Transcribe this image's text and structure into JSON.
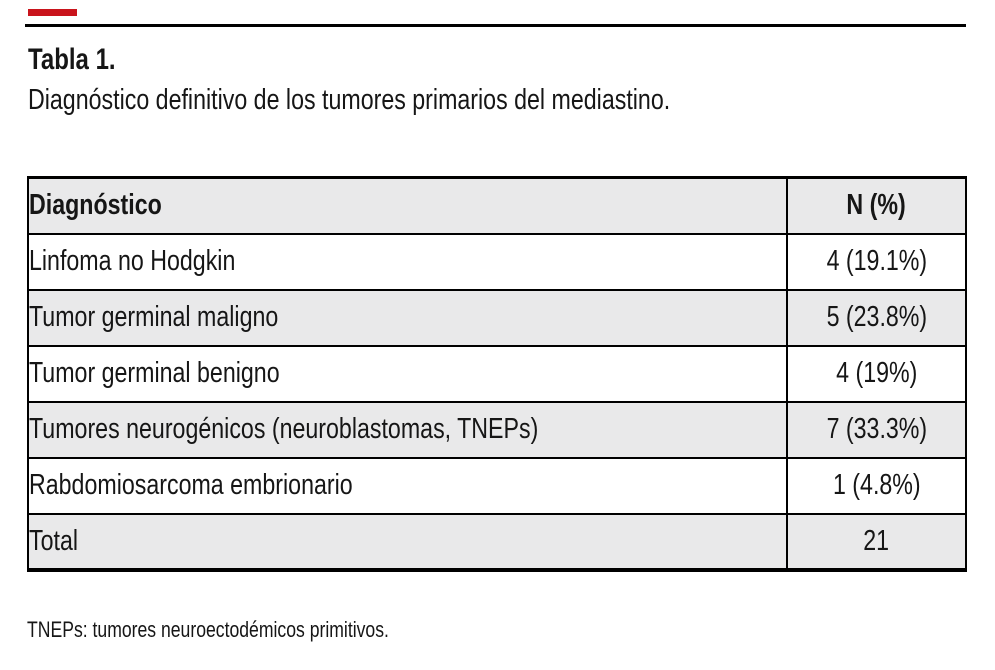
{
  "header": {
    "label": "Tabla 1.",
    "caption": "Diagnóstico definitivo de los tumores primarios del mediastino."
  },
  "table": {
    "columns": [
      "Diagnóstico",
      "N (%)"
    ],
    "rows": [
      {
        "diagnosis": "Linfoma no Hodgkin",
        "n": "4 (19.1%)"
      },
      {
        "diagnosis": "Tumor germinal maligno",
        "n": "5 (23.8%)"
      },
      {
        "diagnosis": "Tumor germinal benigno",
        "n": "4 (19%)"
      },
      {
        "diagnosis": "Tumores neurogénicos (neuroblastomas, TNEPs)",
        "n": "7 (33.3%)"
      },
      {
        "diagnosis": "Rabdomiosarcoma embrionario",
        "n": "1 (4.8%)"
      },
      {
        "diagnosis": "Total",
        "n": "21"
      }
    ]
  },
  "footnote": {
    "text": "TNEPs: tumores neuroectodémicos primitivos."
  },
  "colors": {
    "accent_red": "#c9141c",
    "row_alt_gray": "#e9e9ea",
    "border_black": "#000000"
  }
}
